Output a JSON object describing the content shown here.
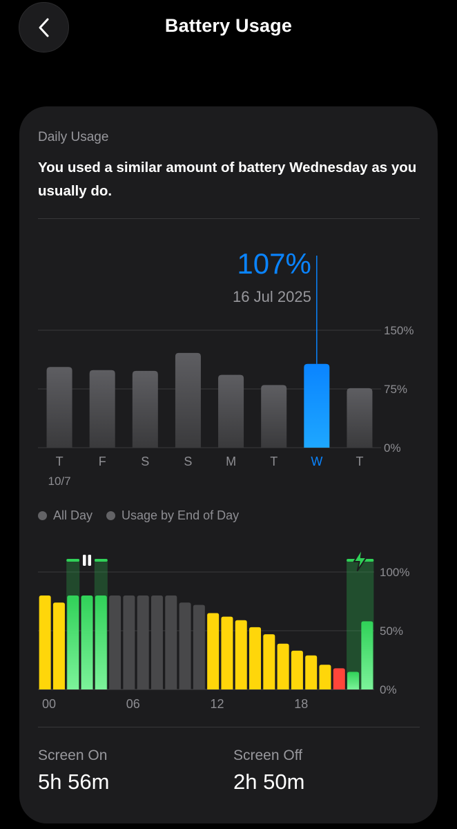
{
  "header": {
    "title": "Battery Usage",
    "back_icon": "chevron-left-icon"
  },
  "daily_usage": {
    "section_label": "Daily Usage",
    "summary": "You used a similar amount of battery Wednesday as you usually do.",
    "selected": {
      "value_label": "107%",
      "date_label": "16 Jul 2025",
      "index": 6
    }
  },
  "legend": {
    "items": [
      "All Day",
      "Usage by End of Day"
    ]
  },
  "stats": {
    "screen_on": {
      "label": "Screen On",
      "value": "5h 56m"
    },
    "screen_off": {
      "label": "Screen Off",
      "value": "2h 50m"
    }
  },
  "colors": {
    "selected_bar": "#0a84ff",
    "bar": "#5a5a5e",
    "battery_high": "#32d74b",
    "battery_mid": "#ffd60a",
    "battery_low": "#ff453a",
    "inactive": "#48484a"
  },
  "chart_data": [
    {
      "type": "bar",
      "categories": [
        "T",
        "F",
        "S",
        "S",
        "M",
        "T",
        "W",
        "T"
      ],
      "category_sublabels": [
        "10/7",
        "",
        "",
        "",
        "",
        "",
        "",
        ""
      ],
      "values": [
        103,
        99,
        98,
        121,
        93,
        80,
        107,
        76
      ],
      "y_ticks": [
        "0%",
        "75%",
        "150%"
      ],
      "ylim": [
        0,
        150
      ],
      "grid": true,
      "highlight_index": 6
    },
    {
      "type": "bar",
      "x_ticks": [
        "00",
        "06",
        "12",
        "18"
      ],
      "y_ticks": [
        "0%",
        "50%",
        "100%"
      ],
      "ylim": [
        0,
        100
      ],
      "grid": true,
      "hours": [
        0,
        1,
        2,
        3,
        4,
        5,
        6,
        7,
        8,
        9,
        10,
        11,
        12,
        13,
        14,
        15,
        16,
        17,
        18,
        19,
        20,
        21,
        22,
        23
      ],
      "values": [
        80,
        74,
        80,
        80,
        80,
        80,
        80,
        80,
        80,
        80,
        74,
        72,
        65,
        62,
        59,
        53,
        47,
        39,
        33,
        29,
        21,
        18,
        15,
        58
      ],
      "states": [
        "mid",
        "mid",
        "high",
        "high",
        "high",
        "inactive",
        "inactive",
        "inactive",
        "inactive",
        "inactive",
        "inactive",
        "inactive",
        "mid",
        "mid",
        "mid",
        "mid",
        "mid",
        "mid",
        "mid",
        "mid",
        "mid",
        "low",
        "high",
        "high"
      ],
      "paused_hours": [
        2,
        4
      ],
      "charging_hours": [
        22,
        23
      ]
    }
  ]
}
